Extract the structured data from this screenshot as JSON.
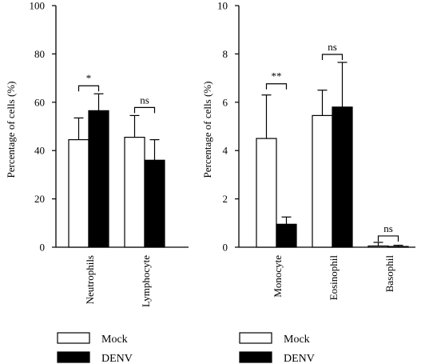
{
  "chart_data": [
    {
      "type": "bar",
      "title": "",
      "xlabel": "",
      "ylabel": "Percentage of cells (%)",
      "ylim": [
        0,
        100
      ],
      "yticks": [
        "0",
        "20",
        "40",
        "60",
        "80",
        "100"
      ],
      "categories": [
        "Neutrophils",
        "Lymphocyte"
      ],
      "series": [
        {
          "name": "Mock",
          "color": "#ffffff",
          "values": [
            44.5,
            45.5
          ],
          "errors": [
            9.0,
            9.0
          ]
        },
        {
          "name": "DENV",
          "color": "#000000",
          "values": [
            56.5,
            36.0
          ],
          "errors": [
            7.0,
            8.5
          ]
        }
      ],
      "annotations": [
        "*",
        "ns"
      ]
    },
    {
      "type": "bar",
      "title": "",
      "xlabel": "",
      "ylabel": "Percentage of cells (%)",
      "ylim": [
        0,
        10
      ],
      "yticks": [
        "0",
        "2",
        "4",
        "6",
        "8",
        "10"
      ],
      "categories": [
        "Monocyte",
        "Eosinophil",
        "Basophil"
      ],
      "series": [
        {
          "name": "Mock",
          "color": "#ffffff",
          "values": [
            4.5,
            5.45,
            0.05
          ],
          "errors": [
            1.8,
            1.05,
            0.15
          ]
        },
        {
          "name": "DENV",
          "color": "#000000",
          "values": [
            0.95,
            5.8,
            0.03
          ],
          "errors": [
            0.3,
            1.85,
            0.05
          ]
        }
      ],
      "annotations": [
        "**",
        "ns",
        "ns"
      ]
    }
  ],
  "legend": {
    "items": [
      "Mock",
      "DENV"
    ]
  }
}
